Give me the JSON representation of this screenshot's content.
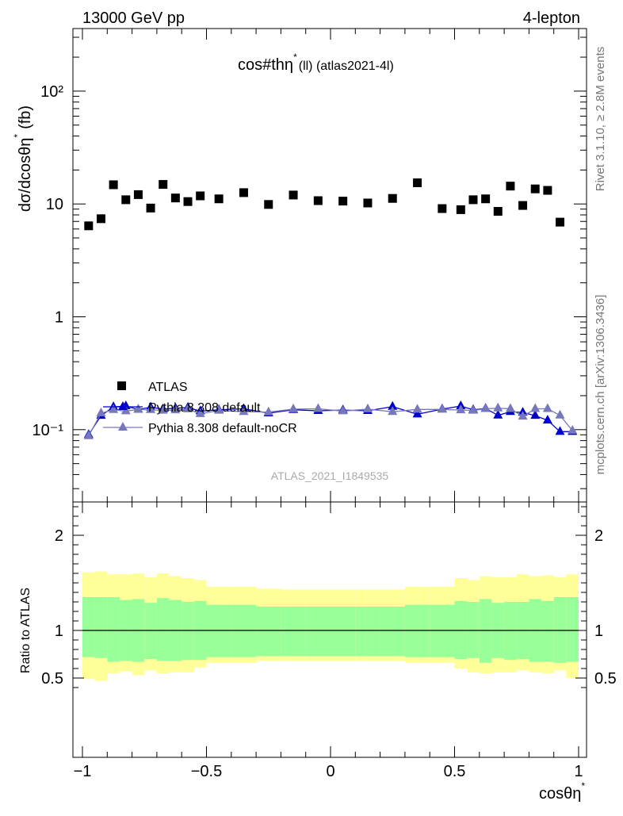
{
  "header": {
    "left": "13000 GeV pp",
    "right": "4-lepton"
  },
  "side_labels": {
    "rivet": "Rivet 3.1.10, ≥ 2.8M events",
    "mcplots": "mcplots.cern.ch [arXiv:1306.3436]"
  },
  "chart_data": {
    "type": "scatter",
    "title_main": "cos#thη",
    "title_sup": "*",
    "title_rest": "(ll) (atlas2021-4l)",
    "watermark": "ATLAS_2021_I1849535",
    "xlabel_main": "cosθη",
    "xlabel_sup": "*",
    "ylabel_main": "dσ/dcosθη",
    "ylabel_sup": "*",
    "ylabel_unit": "(fb)",
    "xlim": [
      -1.0,
      1.0
    ],
    "ylim": [
      0.025,
      400
    ],
    "yscale": "log",
    "ratio_ylabel": "Ratio to ATLAS",
    "ratio_ylim": [
      0.4,
      2.3
    ],
    "x_ticks": [
      "−1",
      "−0.5",
      "0",
      "0.5",
      "1"
    ],
    "y_ticks": {
      "main": [
        "10⁻¹",
        "1",
        "10",
        "10²"
      ],
      "ratio": [
        "0.5",
        "1",
        "2"
      ]
    },
    "legend": {
      "placement": "bottom-left"
    },
    "bin_edges": [
      -1.0,
      -0.95,
      -0.9,
      -0.85,
      -0.8,
      -0.75,
      -0.7,
      -0.65,
      -0.6,
      -0.55,
      -0.5,
      -0.4,
      -0.3,
      -0.2,
      -0.1,
      0.0,
      0.1,
      0.2,
      0.3,
      0.4,
      0.5,
      0.55,
      0.6,
      0.65,
      0.7,
      0.75,
      0.8,
      0.85,
      0.9,
      0.95,
      1.0
    ],
    "series": [
      {
        "name": "ATLAS",
        "marker": "square",
        "color": "#000000",
        "x": [
          -0.975,
          -0.925,
          -0.875,
          -0.825,
          -0.775,
          -0.725,
          -0.675,
          -0.625,
          -0.575,
          -0.525,
          -0.45,
          -0.35,
          -0.25,
          -0.15,
          -0.05,
          0.05,
          0.15,
          0.25,
          0.35,
          0.45,
          0.525,
          0.575,
          0.625,
          0.675,
          0.725,
          0.775,
          0.825,
          0.875,
          0.925,
          0.975
        ],
        "y": [
          6.4,
          7.4,
          14.8,
          10.9,
          12.1,
          9.2,
          14.9,
          11.3,
          10.5,
          11.8,
          11.1,
          12.6,
          9.9,
          12.0,
          10.7,
          10.6,
          10.2,
          11.2,
          15.4,
          9.1,
          8.9,
          10.9,
          11.1,
          8.6,
          14.4,
          9.7,
          13.6,
          13.2,
          6.9,
          0
        ]
      },
      {
        "name": "Pythia 8.308 default",
        "marker": "triangle",
        "color": "#0000cc",
        "x": [
          -0.975,
          -0.925,
          -0.875,
          -0.825,
          -0.775,
          -0.725,
          -0.675,
          -0.625,
          -0.575,
          -0.525,
          -0.45,
          -0.35,
          -0.25,
          -0.15,
          -0.05,
          0.05,
          0.15,
          0.25,
          0.35,
          0.45,
          0.525,
          0.575,
          0.625,
          0.675,
          0.725,
          0.775,
          0.825,
          0.875,
          0.925,
          0.975
        ],
        "y": [
          0.09,
          0.133,
          0.159,
          0.162,
          0.151,
          0.158,
          0.152,
          0.155,
          0.157,
          0.146,
          0.15,
          0.153,
          0.14,
          0.15,
          0.147,
          0.149,
          0.147,
          0.16,
          0.137,
          0.152,
          0.162,
          0.15,
          0.154,
          0.134,
          0.144,
          0.142,
          0.133,
          0.121,
          0.096,
          0.096
        ]
      },
      {
        "name": "Pythia 8.308 default-noCR",
        "marker": "triangle",
        "color": "#7777bb",
        "x": [
          -0.975,
          -0.925,
          -0.875,
          -0.825,
          -0.775,
          -0.725,
          -0.675,
          -0.625,
          -0.575,
          -0.525,
          -0.45,
          -0.35,
          -0.25,
          -0.15,
          -0.05,
          0.05,
          0.15,
          0.25,
          0.35,
          0.45,
          0.525,
          0.575,
          0.625,
          0.675,
          0.725,
          0.775,
          0.825,
          0.875,
          0.925,
          0.975
        ],
        "y": [
          0.088,
          0.14,
          0.15,
          0.146,
          0.151,
          0.15,
          0.148,
          0.149,
          0.152,
          0.138,
          0.148,
          0.144,
          0.143,
          0.152,
          0.153,
          0.146,
          0.152,
          0.144,
          0.151,
          0.151,
          0.149,
          0.148,
          0.153,
          0.155,
          0.153,
          0.131,
          0.153,
          0.153,
          0.134,
          0.098
        ]
      }
    ],
    "ratio_bands": {
      "inner_color": "#99ff99",
      "outer_color": "#ffff99",
      "inner_up": [
        1.35,
        1.35,
        1.35,
        1.32,
        1.33,
        1.29,
        1.34,
        1.32,
        1.3,
        1.31,
        1.27,
        1.27,
        1.25,
        1.25,
        1.25,
        1.25,
        1.25,
        1.25,
        1.27,
        1.27,
        1.31,
        1.3,
        1.33,
        1.29,
        1.3,
        1.3,
        1.33,
        1.31,
        1.35,
        1.35
      ],
      "inner_down": [
        0.72,
        0.71,
        0.67,
        0.68,
        0.67,
        0.7,
        0.68,
        0.68,
        0.69,
        0.69,
        0.72,
        0.72,
        0.73,
        0.73,
        0.73,
        0.73,
        0.73,
        0.73,
        0.72,
        0.72,
        0.7,
        0.71,
        0.66,
        0.71,
        0.69,
        0.7,
        0.67,
        0.67,
        0.66,
        0.67
      ],
      "outer_up": [
        1.61,
        1.62,
        1.59,
        1.59,
        1.6,
        1.56,
        1.6,
        1.57,
        1.55,
        1.53,
        1.46,
        1.46,
        1.44,
        1.43,
        1.43,
        1.43,
        1.43,
        1.43,
        1.46,
        1.46,
        1.55,
        1.53,
        1.57,
        1.56,
        1.56,
        1.59,
        1.57,
        1.58,
        1.56,
        1.59
      ],
      "outer_down": [
        0.49,
        0.47,
        0.55,
        0.57,
        0.53,
        0.58,
        0.55,
        0.56,
        0.56,
        0.61,
        0.66,
        0.66,
        0.68,
        0.68,
        0.68,
        0.68,
        0.68,
        0.68,
        0.66,
        0.66,
        0.6,
        0.56,
        0.55,
        0.56,
        0.56,
        0.58,
        0.56,
        0.55,
        0.58,
        0.5
      ]
    }
  }
}
